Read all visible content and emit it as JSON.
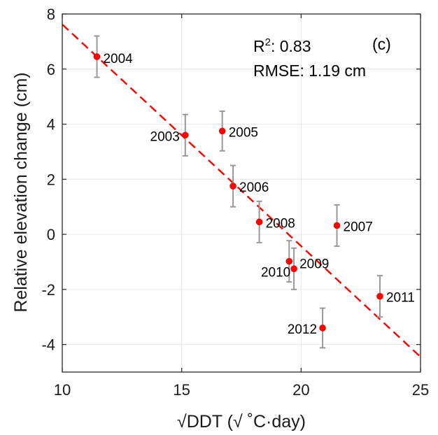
{
  "chart_data": {
    "type": "scatter",
    "title": "",
    "xlabel": "√DDT (√ ˚C·day)",
    "ylabel": "Relative elevation change (cm)",
    "xlim": [
      10,
      25
    ],
    "ylim": [
      -5,
      8
    ],
    "xticks": [
      "10",
      "15",
      "20",
      "25"
    ],
    "yticks": [
      "-4",
      "-2",
      "0",
      "2",
      "4",
      "6",
      "8"
    ],
    "grid": true,
    "points": [
      {
        "label": "2004",
        "x": 11.45,
        "y": 6.45,
        "err": 0.75
      },
      {
        "label": "2003",
        "x": 15.15,
        "y": 3.6,
        "err": 0.75
      },
      {
        "label": "2005",
        "x": 16.7,
        "y": 3.75,
        "err": 0.72
      },
      {
        "label": "2006",
        "x": 17.15,
        "y": 1.75,
        "err": 0.75
      },
      {
        "label": "2008",
        "x": 18.25,
        "y": 0.45,
        "err": 0.75
      },
      {
        "label": "2007",
        "x": 21.5,
        "y": 0.32,
        "err": 0.75
      },
      {
        "label": "2010",
        "x": 19.5,
        "y": -0.98,
        "err": 0.75
      },
      {
        "label": "2009",
        "x": 19.7,
        "y": -1.25,
        "err": 0.75
      },
      {
        "label": "2012",
        "x": 20.9,
        "y": -3.4,
        "err": 0.72
      },
      {
        "label": "2011",
        "x": 23.3,
        "y": -2.25,
        "err": 0.75
      }
    ],
    "fit_line": {
      "x": [
        10,
        25
      ],
      "y": [
        7.62,
        -4.45
      ],
      "style": "dashed"
    },
    "annotations": {
      "r2_prefix": "R",
      "r2_sup": "2",
      "r2_value": ": 0.83",
      "rmse": "RMSE: 1.19 cm",
      "panel": "(c)"
    },
    "colors": {
      "points": "#ff0000",
      "fit": "#ff0000",
      "errorbar": "#999999",
      "grid": "#e6e6e6",
      "axis": "#262626"
    }
  }
}
